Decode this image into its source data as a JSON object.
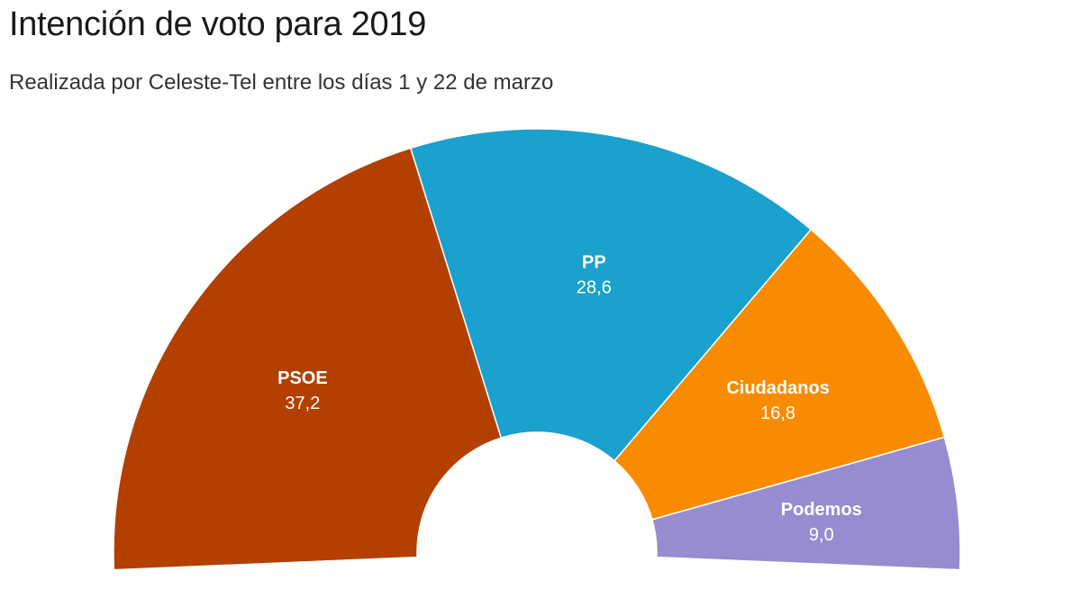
{
  "chart_data": {
    "type": "pie",
    "variant": "semicircle-donut (parliament style)",
    "title": "Intención de voto para 2019",
    "subtitle": "Realizada por Celeste-Tel entre los días 1 y 22 de marzo",
    "categories": [
      "PSOE",
      "PP",
      "Ciudadanos",
      "Podemos"
    ],
    "values": [
      37.2,
      28.6,
      16.8,
      9.0
    ],
    "value_labels": [
      "37,2",
      "28,6",
      "16,8",
      "9,0"
    ],
    "colors": [
      "#b33f00",
      "#1aa1cd",
      "#f98b00",
      "#978ccf"
    ],
    "legend": "none (labels on slices)"
  }
}
